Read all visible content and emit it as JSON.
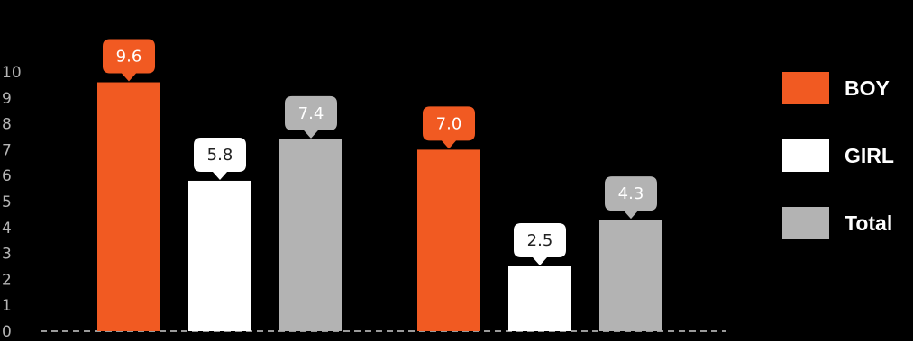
{
  "chart_data": {
    "type": "bar",
    "categories": [
      "",
      ""
    ],
    "series": [
      {
        "name": "BOY",
        "color": "#f15a22",
        "values": [
          9.6,
          7.0
        ],
        "labels": [
          "9.6",
          "7.0"
        ]
      },
      {
        "name": "GIRL",
        "color": "#ffffff",
        "values": [
          5.8,
          2.5
        ],
        "labels": [
          "5.8",
          "2.5"
        ]
      },
      {
        "name": "Total",
        "color": "#b3b3b3",
        "values": [
          7.4,
          4.3
        ],
        "labels": [
          "7.4",
          "4.3"
        ]
      }
    ],
    "yticks": [
      "0",
      "1",
      "2",
      "3",
      "4",
      "5",
      "6",
      "7",
      "8",
      "9",
      "10"
    ],
    "ylim": [
      0,
      10
    ],
    "title": "",
    "xlabel": "",
    "ylabel": "",
    "grid": false,
    "legend_position": "right"
  }
}
